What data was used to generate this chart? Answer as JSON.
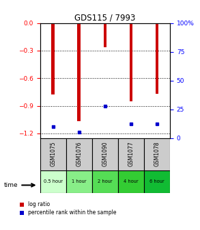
{
  "title": "GDS115 / 7993",
  "samples": [
    "GSM1075",
    "GSM1076",
    "GSM1090",
    "GSM1077",
    "GSM1078"
  ],
  "time_labels": [
    "0.5 hour",
    "1 hour",
    "2 hour",
    "4 hour",
    "6 hour"
  ],
  "log_ratios": [
    -0.78,
    -1.07,
    -0.26,
    -0.85,
    -0.77
  ],
  "percentile_ranks": [
    10,
    5,
    28,
    12,
    12
  ],
  "bar_color_red": "#cc0000",
  "bar_color_blue": "#0000cc",
  "ylim_left": [
    -1.25,
    0.0
  ],
  "ylim_right": [
    0,
    100
  ],
  "yticks_left": [
    0.0,
    -0.3,
    -0.6,
    -0.9,
    -1.2
  ],
  "yticks_right": [
    0,
    25,
    50,
    75,
    100
  ],
  "bar_width": 0.12,
  "sample_label_bg": "#cccccc",
  "time_colors": [
    "#ccffcc",
    "#88ee88",
    "#44dd44",
    "#22cc22",
    "#00bb00"
  ]
}
